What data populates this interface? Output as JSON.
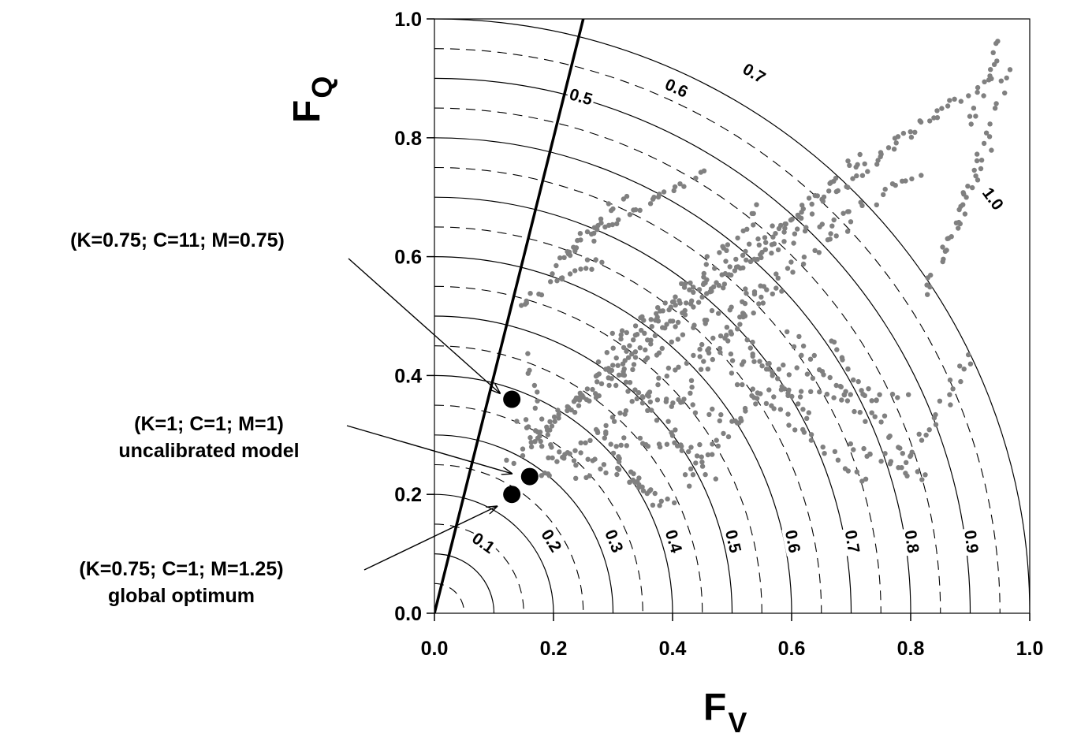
{
  "chart_data": {
    "type": "scatter",
    "xlabel": {
      "main": "F",
      "sub": "V"
    },
    "ylabel": {
      "main": "F",
      "sub": "Q"
    },
    "xlim": [
      0,
      1.0
    ],
    "ylim": [
      0,
      1.0
    ],
    "x_ticks": [
      "0.0",
      "0.2",
      "0.4",
      "0.6",
      "0.8",
      "1.0"
    ],
    "y_ticks": [
      "0.0",
      "0.2",
      "0.4",
      "0.6",
      "0.8",
      "1.0"
    ],
    "grid": false,
    "contours": {
      "shape": "circle-arc centered at origin",
      "solid_radii": [
        0.1,
        0.2,
        0.3,
        0.4,
        0.5,
        0.6,
        0.7,
        0.8,
        0.9,
        1.0
      ],
      "dashed_radii": [
        0.05,
        0.15,
        0.25,
        0.35,
        0.45,
        0.55,
        0.65,
        0.75,
        0.85,
        0.95
      ],
      "labels": [
        {
          "text": "0.1",
          "x": 0.08,
          "y": 0.115
        },
        {
          "text": "0.2",
          "x": 0.193,
          "y": 0.12
        },
        {
          "text": "0.3",
          "x": 0.298,
          "y": 0.12
        },
        {
          "text": "0.4",
          "x": 0.398,
          "y": 0.12
        },
        {
          "text": "0.5",
          "x": 0.498,
          "y": 0.12
        },
        {
          "text": "0.6",
          "x": 0.598,
          "y": 0.12
        },
        {
          "text": "0.7",
          "x": 0.698,
          "y": 0.12
        },
        {
          "text": "0.8",
          "x": 0.798,
          "y": 0.12
        },
        {
          "text": "0.9",
          "x": 0.898,
          "y": 0.12
        },
        {
          "text": "0.5",
          "x": 0.245,
          "y": 0.865
        },
        {
          "text": "0.6",
          "x": 0.405,
          "y": 0.88
        },
        {
          "text": "0.7",
          "x": 0.535,
          "y": 0.905
        },
        {
          "text": "1.0",
          "x": 0.935,
          "y": 0.695
        }
      ]
    },
    "boundary_line": {
      "from": [
        0.0,
        0.0
      ],
      "to": [
        0.25,
        1.0
      ]
    },
    "highlight_points": [
      {
        "x": 0.13,
        "y": 0.36
      },
      {
        "x": 0.16,
        "y": 0.23
      },
      {
        "x": 0.13,
        "y": 0.2
      }
    ],
    "annotations": [
      {
        "lines": [
          "(K=0.75; C=11; M=0.75)"
        ],
        "target": [
          0.11,
          0.37
        ]
      },
      {
        "lines": [
          "(K=1; C=1; M=1)",
          "uncalibrated model"
        ],
        "target": [
          0.13,
          0.235
        ]
      },
      {
        "lines": [
          "(K=0.75; C=1; M=1.25)",
          "global optimum"
        ],
        "target": [
          0.105,
          0.18
        ]
      }
    ],
    "scatter_series": [
      {
        "from": [
          0.13,
          0.25
        ],
        "to": [
          0.55,
          0.68
        ],
        "n": 60
      },
      {
        "from": [
          0.16,
          0.28
        ],
        "to": [
          0.72,
          0.77
        ],
        "n": 60
      },
      {
        "from": [
          0.2,
          0.33
        ],
        "to": [
          0.86,
          0.86
        ],
        "n": 60
      },
      {
        "from": [
          0.27,
          0.43
        ],
        "to": [
          0.93,
          0.9
        ],
        "n": 55
      },
      {
        "from": [
          0.18,
          0.23
        ],
        "to": [
          0.58,
          0.55
        ],
        "n": 50
      },
      {
        "from": [
          0.24,
          0.35
        ],
        "to": [
          0.7,
          0.65
        ],
        "n": 50
      },
      {
        "from": [
          0.3,
          0.47
        ],
        "to": [
          0.82,
          0.74
        ],
        "n": 50
      },
      {
        "from": [
          0.2,
          0.58
        ],
        "to": [
          0.32,
          0.7
        ],
        "n": 20
      },
      {
        "from": [
          0.22,
          0.61
        ],
        "to": [
          0.45,
          0.74
        ],
        "n": 30
      },
      {
        "from": [
          0.14,
          0.52
        ],
        "to": [
          0.28,
          0.6
        ],
        "n": 20
      },
      {
        "from": [
          0.28,
          0.31
        ],
        "to": [
          0.36,
          0.19
        ],
        "n": 18
      },
      {
        "from": [
          0.25,
          0.27
        ],
        "to": [
          0.4,
          0.18
        ],
        "n": 22
      },
      {
        "from": [
          0.31,
          0.4
        ],
        "to": [
          0.47,
          0.23
        ],
        "n": 22
      },
      {
        "from": [
          0.42,
          0.22
        ],
        "to": [
          0.55,
          0.37
        ],
        "n": 22
      },
      {
        "from": [
          0.4,
          0.34
        ],
        "to": [
          0.54,
          0.54
        ],
        "n": 22
      },
      {
        "from": [
          0.52,
          0.46
        ],
        "to": [
          0.63,
          0.33
        ],
        "n": 20
      },
      {
        "from": [
          0.5,
          0.4
        ],
        "to": [
          0.72,
          0.22
        ],
        "n": 26
      },
      {
        "from": [
          0.6,
          0.47
        ],
        "to": [
          0.72,
          0.33
        ],
        "n": 20
      },
      {
        "from": [
          0.66,
          0.46
        ],
        "to": [
          0.79,
          0.27
        ],
        "n": 22
      },
      {
        "from": [
          0.7,
          0.28
        ],
        "to": [
          0.82,
          0.23
        ],
        "n": 16
      },
      {
        "from": [
          0.79,
          0.24
        ],
        "to": [
          0.9,
          0.43
        ],
        "n": 22
      },
      {
        "from": [
          0.82,
          0.53
        ],
        "to": [
          0.93,
          0.78
        ],
        "n": 22
      },
      {
        "from": [
          0.86,
          0.6
        ],
        "to": [
          0.97,
          0.92
        ],
        "n": 22
      },
      {
        "from": [
          0.9,
          0.82
        ],
        "to": [
          0.95,
          0.97
        ],
        "n": 14
      },
      {
        "from": [
          0.3,
          0.29
        ],
        "to": [
          0.44,
          0.28
        ],
        "n": 16
      },
      {
        "from": [
          0.33,
          0.37
        ],
        "to": [
          0.52,
          0.32
        ],
        "n": 18
      },
      {
        "from": [
          0.45,
          0.44
        ],
        "to": [
          0.63,
          0.4
        ],
        "n": 18
      },
      {
        "from": [
          0.56,
          0.37
        ],
        "to": [
          0.79,
          0.36
        ],
        "n": 20
      },
      {
        "from": [
          0.14,
          0.33
        ],
        "to": [
          0.26,
          0.22
        ],
        "n": 16
      },
      {
        "from": [
          0.15,
          0.43
        ],
        "to": [
          0.2,
          0.24
        ],
        "n": 14
      }
    ],
    "colors": {
      "scatter": "#808080",
      "highlight": "#000000",
      "lines": "#000000"
    }
  }
}
